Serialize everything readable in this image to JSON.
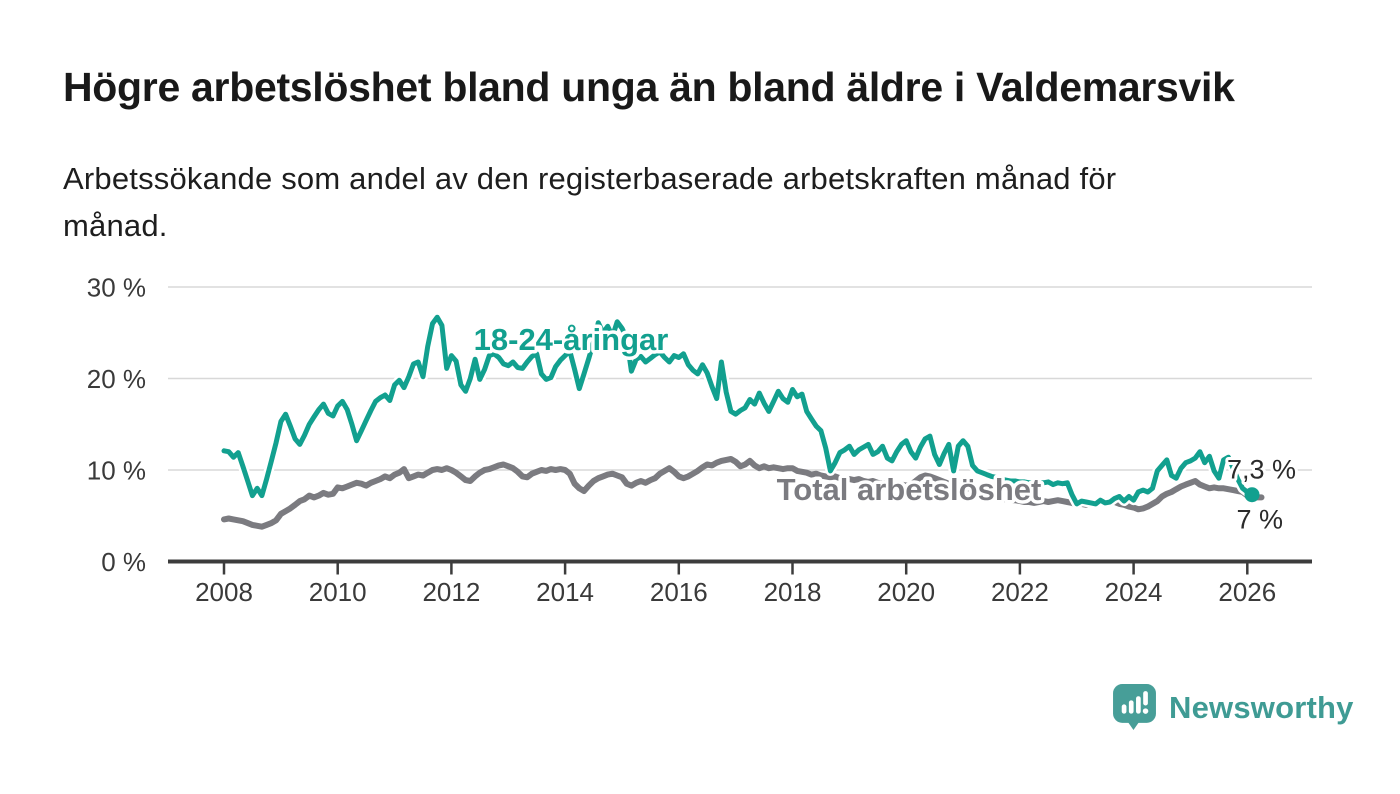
{
  "title": "Högre arbetslöshet bland unga än bland äldre i Valdemarsvik",
  "subtitle": "Arbetssökande som andel av den registerbaserade arbetskraften månad för månad.",
  "branding": {
    "logo_text": "Newsworthy",
    "logo_color": "#3f9b94",
    "logo_mark_color": "#479e98"
  },
  "chart_data": {
    "type": "line",
    "title": "Högre arbetslöshet bland unga än bland äldre i Valdemarsvik",
    "xlabel": "",
    "ylabel": "",
    "x_start_year": 2008,
    "x_step": "monthly",
    "xticks": [
      2008,
      2010,
      2012,
      2014,
      2016,
      2018,
      2020,
      2022,
      2024,
      2026
    ],
    "yticks": [
      {
        "value": 0,
        "label": "0 %"
      },
      {
        "value": 10,
        "label": "10 %"
      },
      {
        "value": 20,
        "label": "20 %"
      },
      {
        "value": 30,
        "label": "30 %"
      }
    ],
    "ylim": [
      0,
      31
    ],
    "grid": "horizontal",
    "legend_position": "inline-labels",
    "end_labels": {
      "young": "7,3 %",
      "total": "7 %"
    },
    "series": [
      {
        "name": "18-24-åringar",
        "color": "#12a08f",
        "end_dot": true,
        "values": [
          12.1,
          12.0,
          11.4,
          11.9,
          10.4,
          8.8,
          7.2,
          8.0,
          7.2,
          9.0,
          11.0,
          13.0,
          15.3,
          16.1,
          14.8,
          13.4,
          12.8,
          13.8,
          15.0,
          15.8,
          16.6,
          17.2,
          16.2,
          15.9,
          17.0,
          17.5,
          16.6,
          15.0,
          13.2,
          14.3,
          15.4,
          16.5,
          17.5,
          17.9,
          18.2,
          17.6,
          19.3,
          19.8,
          19.0,
          20.2,
          21.6,
          21.8,
          20.2,
          23.5,
          26.0,
          26.7,
          25.8,
          21.1,
          22.5,
          21.9,
          19.3,
          18.6,
          20.0,
          22.1,
          19.9,
          21.0,
          22.5,
          22.7,
          22.3,
          21.6,
          21.4,
          21.8,
          21.2,
          21.1,
          21.8,
          22.4,
          22.7,
          20.5,
          19.9,
          20.1,
          21.3,
          22.0,
          22.5,
          23.0,
          21.0,
          18.9,
          20.5,
          22.2,
          24.0,
          26.1,
          25.0,
          25.7,
          24.6,
          26.2,
          25.5,
          24.4,
          20.8,
          22.1,
          22.4,
          21.8,
          22.2,
          22.6,
          22.9,
          22.3,
          21.8,
          22.5,
          22.3,
          22.7,
          21.5,
          20.9,
          20.5,
          21.5,
          20.6,
          19.1,
          17.8,
          21.8,
          18.5,
          16.4,
          16.1,
          16.5,
          16.8,
          17.7,
          17.2,
          18.4,
          17.3,
          16.4,
          17.5,
          18.6,
          17.8,
          17.4,
          18.8,
          18.0,
          18.3,
          16.4,
          15.6,
          14.8,
          14.3,
          12.4,
          9.9,
          10.8,
          11.9,
          12.2,
          12.6,
          11.7,
          12.2,
          12.5,
          12.8,
          11.7,
          12.0,
          12.6,
          11.3,
          11.0,
          12.0,
          12.8,
          13.2,
          12.0,
          11.3,
          12.5,
          13.4,
          13.7,
          11.7,
          10.6,
          11.8,
          12.8,
          9.9,
          12.6,
          13.2,
          12.6,
          10.5,
          9.9,
          9.7,
          9.5,
          9.3,
          9.2,
          9.0,
          8.9,
          8.8,
          8.8,
          8.7,
          8.7,
          8.6,
          8.6,
          8.6,
          8.6,
          8.7,
          8.4,
          8.6,
          8.5,
          8.6,
          7.3,
          6.3,
          6.6,
          6.5,
          6.4,
          6.3,
          6.7,
          6.4,
          6.5,
          6.9,
          7.1,
          6.6,
          7.1,
          6.7,
          7.6,
          7.8,
          7.6,
          8.0,
          9.9,
          10.5,
          11.1,
          9.4,
          9.1,
          10.2,
          10.8,
          11.0,
          11.3,
          12.0,
          10.8,
          11.5,
          9.9,
          9.1,
          11.1,
          11.4,
          10.2,
          9.0,
          8.0,
          7.6,
          7.3
        ]
      },
      {
        "name": "Total arbetslöshet",
        "color": "#7b7b80",
        "end_dot": false,
        "values": [
          4.6,
          4.7,
          4.6,
          4.5,
          4.4,
          4.2,
          4.0,
          3.9,
          3.8,
          4.0,
          4.2,
          4.5,
          5.2,
          5.5,
          5.8,
          6.2,
          6.6,
          6.8,
          7.2,
          7.0,
          7.2,
          7.5,
          7.3,
          7.4,
          8.1,
          8.0,
          8.2,
          8.4,
          8.6,
          8.5,
          8.3,
          8.6,
          8.8,
          9.0,
          9.3,
          9.1,
          9.5,
          9.7,
          10.1,
          9.1,
          9.3,
          9.5,
          9.4,
          9.7,
          10.0,
          10.1,
          10.0,
          10.2,
          10.0,
          9.7,
          9.3,
          8.9,
          8.8,
          9.3,
          9.7,
          10.0,
          10.1,
          10.3,
          10.5,
          10.6,
          10.4,
          10.2,
          9.8,
          9.3,
          9.2,
          9.6,
          9.8,
          10.0,
          9.9,
          10.1,
          10.0,
          10.1,
          10.0,
          9.6,
          8.5,
          8.0,
          7.7,
          8.3,
          8.8,
          9.1,
          9.3,
          9.5,
          9.6,
          9.4,
          9.2,
          8.5,
          8.3,
          8.6,
          8.8,
          8.6,
          8.9,
          9.1,
          9.6,
          9.9,
          10.2,
          9.8,
          9.3,
          9.1,
          9.3,
          9.6,
          9.9,
          10.3,
          10.6,
          10.5,
          10.8,
          11.0,
          11.1,
          11.2,
          10.9,
          10.4,
          10.6,
          11.0,
          10.5,
          10.2,
          10.4,
          10.2,
          10.3,
          10.2,
          10.1,
          10.2,
          10.2,
          9.9,
          9.8,
          9.7,
          9.5,
          9.6,
          9.4,
          9.3,
          9.2,
          9.3,
          9.1,
          9.1,
          9.0,
          8.9,
          9.0,
          8.8,
          8.7,
          8.8,
          8.6,
          8.5,
          8.6,
          8.4,
          8.3,
          8.4,
          8.3,
          8.4,
          8.8,
          9.2,
          9.4,
          9.3,
          9.1,
          8.9,
          8.7,
          8.5,
          8.4,
          8.3,
          8.2,
          8.0,
          7.8,
          7.6,
          7.4,
          7.2,
          7.1,
          7.0,
          6.9,
          6.8,
          6.7,
          6.7,
          6.6,
          6.5,
          6.5,
          6.4,
          6.5,
          6.6,
          6.5,
          6.6,
          6.7,
          6.6,
          6.5,
          6.4,
          6.2,
          6.3,
          6.2,
          6.3,
          6.4,
          6.5,
          6.6,
          6.7,
          6.5,
          6.3,
          6.2,
          6.0,
          5.9,
          5.7,
          5.8,
          6.0,
          6.3,
          6.6,
          7.1,
          7.4,
          7.6,
          7.9,
          8.2,
          8.4,
          8.6,
          8.8,
          8.4,
          8.2,
          8.0,
          8.1,
          8.0,
          8.0,
          7.9,
          7.8,
          7.7,
          7.6,
          7.2,
          7.0,
          7.0,
          7.0
        ]
      }
    ]
  }
}
